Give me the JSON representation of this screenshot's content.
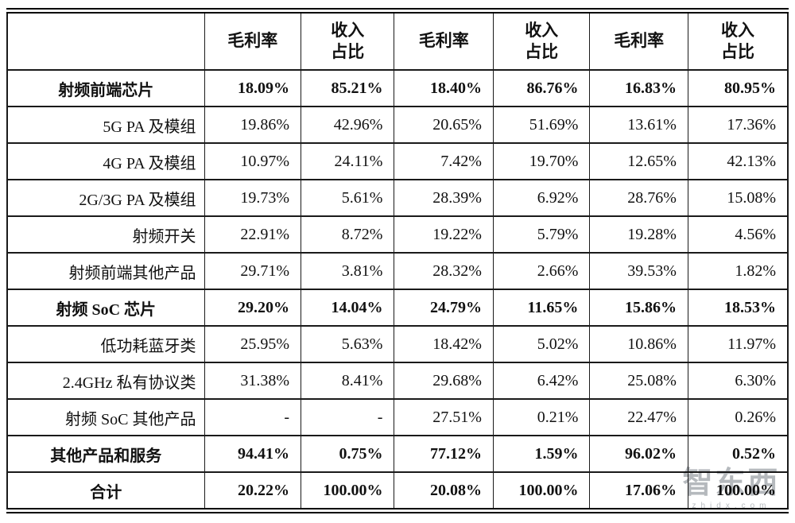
{
  "table": {
    "column_headers": [
      "毛利率",
      "收入\n占比",
      "毛利率",
      "收入\n占比",
      "毛利率",
      "收入\n占比"
    ],
    "corner_label": "",
    "rows": [
      {
        "label": "射频前端芯片",
        "bold": true,
        "values": [
          "18.09%",
          "85.21%",
          "18.40%",
          "86.76%",
          "16.83%",
          "80.95%"
        ]
      },
      {
        "label": "5G PA 及模组",
        "bold": false,
        "values": [
          "19.86%",
          "42.96%",
          "20.65%",
          "51.69%",
          "13.61%",
          "17.36%"
        ]
      },
      {
        "label": "4G PA 及模组",
        "bold": false,
        "values": [
          "10.97%",
          "24.11%",
          "7.42%",
          "19.70%",
          "12.65%",
          "42.13%"
        ]
      },
      {
        "label": "2G/3G PA 及模组",
        "bold": false,
        "values": [
          "19.73%",
          "5.61%",
          "28.39%",
          "6.92%",
          "28.76%",
          "15.08%"
        ]
      },
      {
        "label": "射频开关",
        "bold": false,
        "values": [
          "22.91%",
          "8.72%",
          "19.22%",
          "5.79%",
          "19.28%",
          "4.56%"
        ]
      },
      {
        "label": "射频前端其他产品",
        "bold": false,
        "values": [
          "29.71%",
          "3.81%",
          "28.32%",
          "2.66%",
          "39.53%",
          "1.82%"
        ]
      },
      {
        "label": "射频 SoC 芯片",
        "bold": true,
        "values": [
          "29.20%",
          "14.04%",
          "24.79%",
          "11.65%",
          "15.86%",
          "18.53%"
        ]
      },
      {
        "label": "低功耗蓝牙类",
        "bold": false,
        "values": [
          "25.95%",
          "5.63%",
          "18.42%",
          "5.02%",
          "10.86%",
          "11.97%"
        ]
      },
      {
        "label": "2.4GHz 私有协议类",
        "bold": false,
        "values": [
          "31.38%",
          "8.41%",
          "29.68%",
          "6.42%",
          "25.08%",
          "6.30%"
        ]
      },
      {
        "label": "射频 SoC 其他产品",
        "bold": false,
        "values": [
          "-",
          "-",
          "27.51%",
          "0.21%",
          "22.47%",
          "0.26%"
        ]
      },
      {
        "label": "其他产品和服务",
        "bold": true,
        "values": [
          "94.41%",
          "0.75%",
          "77.12%",
          "1.59%",
          "96.02%",
          "0.52%"
        ]
      },
      {
        "label": "合计",
        "bold": true,
        "values": [
          "20.22%",
          "100.00%",
          "20.08%",
          "100.00%",
          "17.06%",
          "100.00%"
        ]
      }
    ]
  },
  "watermark": {
    "logo_text": "智东西",
    "url_text": "zhidx.com"
  },
  "colors": {
    "border": "#1a1a1a",
    "text": "#111111",
    "watermark": "#b5b9bd"
  }
}
